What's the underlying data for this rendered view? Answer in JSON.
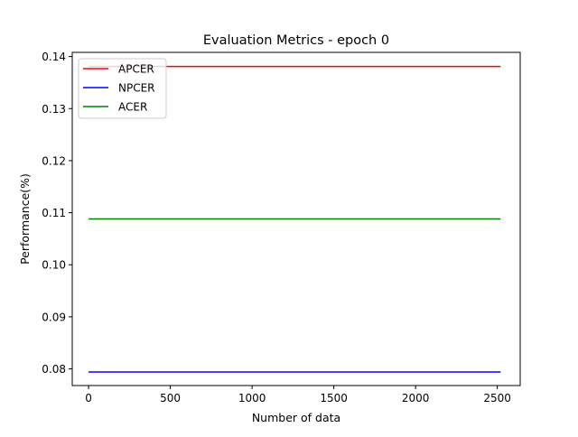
{
  "chart_data": {
    "type": "line",
    "title": "Evaluation Metrics - epoch 0",
    "xlabel": "Number of data",
    "ylabel": "Performance(%)",
    "xlim": [
      -100,
      2640
    ],
    "ylim": [
      0.0768,
      0.1408
    ],
    "xticks": [
      0,
      500,
      1000,
      1500,
      2000,
      2500
    ],
    "xtick_labels": [
      "0",
      "500",
      "1000",
      "1500",
      "2000",
      "2500"
    ],
    "yticks": [
      0.08,
      0.09,
      0.1,
      0.11,
      0.12,
      0.13,
      0.14
    ],
    "ytick_labels": [
      "0.08",
      "0.09",
      "0.10",
      "0.11",
      "0.12",
      "0.13",
      "0.14"
    ],
    "grid": false,
    "legend_position": "top-left",
    "series": [
      {
        "name": "APCER",
        "color": "#ff0000",
        "x": [
          0,
          2520
        ],
        "y": [
          0.1381,
          0.1381
        ]
      },
      {
        "name": "NPCER",
        "color": "#0000ff",
        "x": [
          0,
          2520
        ],
        "y": [
          0.0794,
          0.0794
        ]
      },
      {
        "name": "ACER",
        "color": "#008000",
        "x": [
          0,
          2520
        ],
        "y": [
          0.1088,
          0.1088
        ]
      }
    ]
  }
}
